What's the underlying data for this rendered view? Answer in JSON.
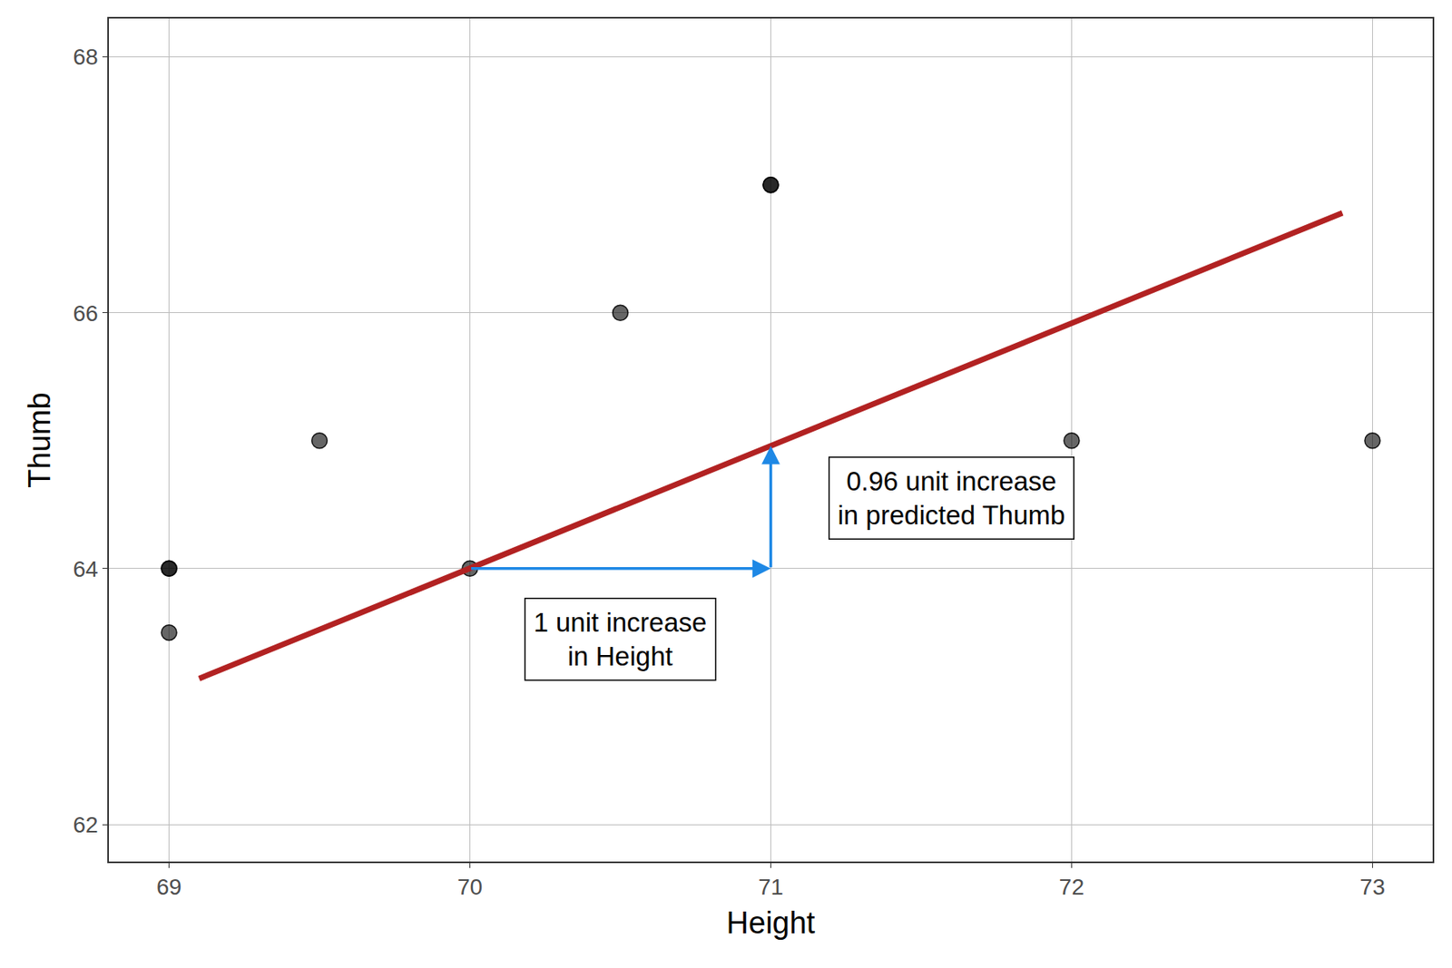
{
  "chart_data": {
    "type": "scatter",
    "x_label": "Height",
    "y_label": "Thumb",
    "xlim": [
      68.8,
      73.2
    ],
    "ylim": [
      61.71,
      68.3
    ],
    "xticks": [
      69,
      70,
      71,
      72,
      73
    ],
    "yticks": [
      62,
      64,
      66,
      68
    ],
    "grid": true,
    "series": [
      {
        "type": "scatter",
        "color": "#000000",
        "marker": "circle",
        "x": [
          69,
          69,
          69,
          69.5,
          70,
          70.5,
          71,
          71,
          72,
          73
        ],
        "values": [
          64,
          64,
          63.5,
          65,
          64,
          66,
          67,
          67,
          65,
          65
        ]
      },
      {
        "type": "line",
        "color": "#b22222",
        "line_style": "solid",
        "x": [
          69.1,
          72.9
        ],
        "values": [
          63.14,
          66.78
        ]
      }
    ],
    "arrows": [
      {
        "color": "#1e88e5",
        "from": [
          70,
          64
        ],
        "to": [
          71,
          64
        ]
      },
      {
        "color": "#1e88e5",
        "from": [
          71,
          64
        ],
        "to": [
          71,
          64.96
        ]
      }
    ],
    "annotations": [
      {
        "text": "1 unit increase\nin Height",
        "x": 70.5,
        "y": 63.45
      },
      {
        "text": "0.96 unit increase\nin predicted Thumb",
        "x": 71.6,
        "y": 64.55
      }
    ]
  }
}
